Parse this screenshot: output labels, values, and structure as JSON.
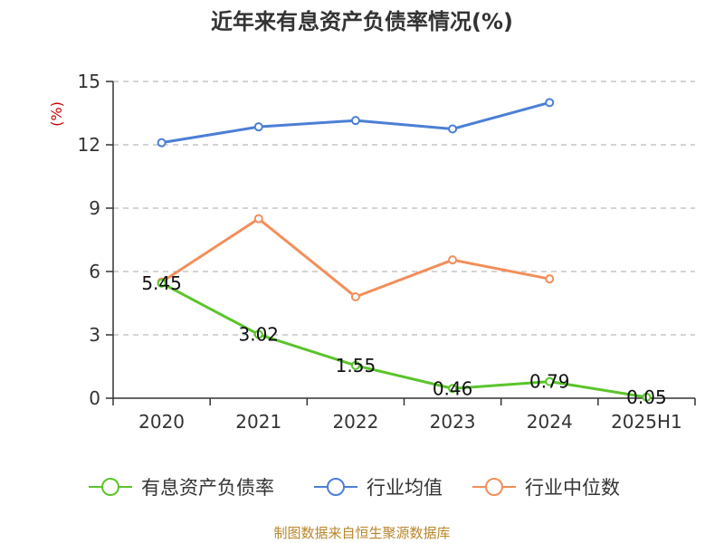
{
  "chart_data": {
    "type": "line",
    "title": "近年来有息资产负债率情况(%)",
    "ylabel": "(%)",
    "categories": [
      "2020",
      "2021",
      "2022",
      "2023",
      "2024",
      "2025H1"
    ],
    "ylim": [
      0,
      15
    ],
    "yticks": [
      0,
      3,
      6,
      9,
      12,
      15
    ],
    "grid": true,
    "legend_position": "bottom",
    "series": [
      {
        "name": "有息资产负债率",
        "color": "#5bc42b",
        "values": [
          5.45,
          3.02,
          1.55,
          0.46,
          0.79,
          0.05
        ],
        "labels": [
          "5.45",
          "3.02",
          "1.55",
          "0.46",
          "0.79",
          "0.05"
        ]
      },
      {
        "name": "行业均值",
        "color": "#4c7fd6",
        "values": [
          12.1,
          12.85,
          13.15,
          12.75,
          14.0,
          null
        ]
      },
      {
        "name": "行业中位数",
        "color": "#f38e5a",
        "values": [
          5.5,
          8.5,
          4.8,
          6.55,
          5.65,
          null
        ]
      }
    ]
  },
  "source": "制图数据来自恒生聚源数据库"
}
